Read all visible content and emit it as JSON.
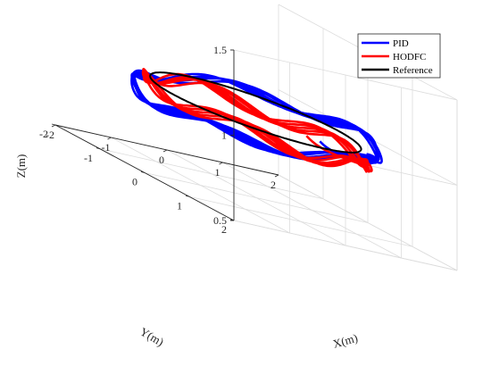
{
  "chart_data": {
    "type": "line",
    "projection": "3d",
    "xlabel": "X(m)",
    "ylabel": "Y(m)",
    "zlabel": "Z(m)",
    "xlim": [
      -2,
      2
    ],
    "ylim": [
      -2,
      2
    ],
    "zlim": [
      0.5,
      1.5
    ],
    "xticks": [
      "-2",
      "-1",
      "0",
      "1",
      "2"
    ],
    "yticks": [
      "-2",
      "-1",
      "0",
      "1",
      "2"
    ],
    "zticks": [
      "0.5",
      "1",
      "1.5"
    ],
    "grid": true,
    "legend_position": "top-right",
    "series": [
      {
        "name": "PID",
        "color": "#0000ff",
        "shape": "circle",
        "center": [
          0,
          0
        ],
        "radius": 1.72,
        "z_center": 0.97,
        "z_tilt_amplitude": 0.05,
        "z_wobble_amplitude": 0.035,
        "loops": 5,
        "start_point": [
          0.3,
          1.05,
          1.0
        ]
      },
      {
        "name": "HODFC",
        "color": "#ff0000",
        "shape": "circle",
        "center": [
          0,
          0
        ],
        "radius": 1.58,
        "z_center": 0.95,
        "z_tilt_amplitude": -0.04,
        "z_wobble_amplitude": 0.045,
        "loops": 5,
        "start_point": [
          0.5,
          0.5,
          0.97
        ]
      },
      {
        "name": "Reference",
        "color": "#000000",
        "shape": "circle",
        "center": [
          0,
          0
        ],
        "radius": 1.5,
        "z_center": 1.0,
        "z_tilt_amplitude": 0,
        "z_wobble_amplitude": 0,
        "loops": 1
      }
    ]
  }
}
